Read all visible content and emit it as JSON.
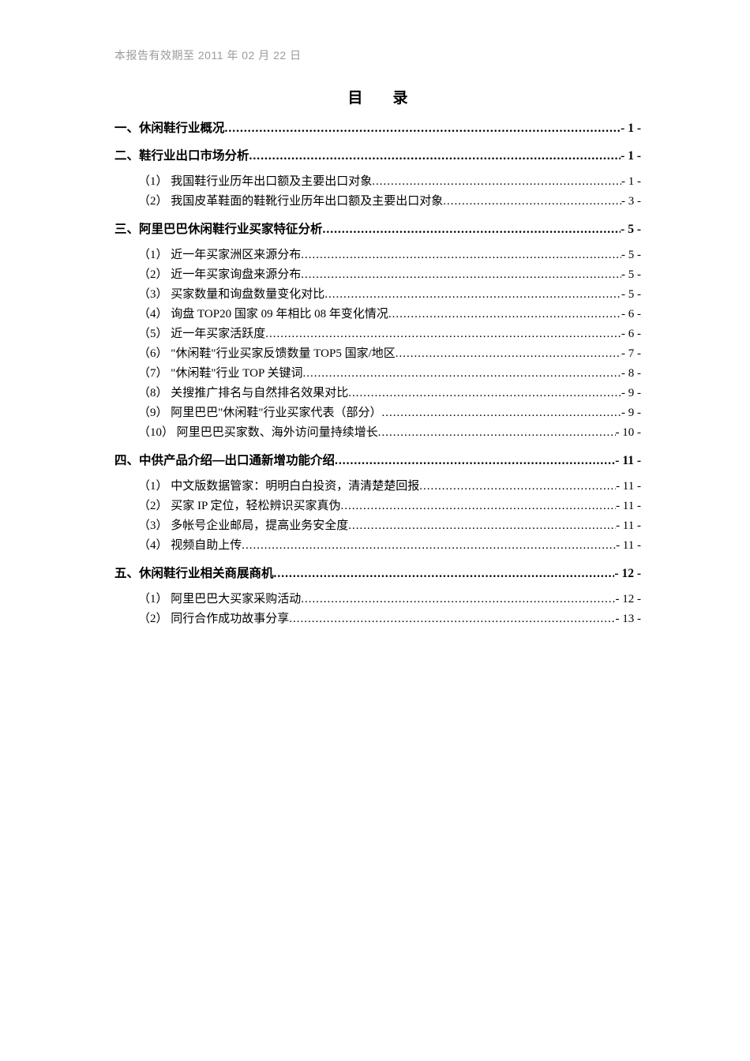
{
  "colors": {
    "background": "#ffffff",
    "body_text": "#000000",
    "header_text": "#9b9b9b"
  },
  "document": {
    "header_note": "本报告有效期至 2011 年 02 月 22 日",
    "title": "目　　录"
  },
  "toc": [
    {
      "level": 1,
      "label": "一、休闲鞋行业概况",
      "page": "- 1 -"
    },
    {
      "level": 1,
      "label": "二、鞋行业出口市场分析",
      "page": "- 1 -"
    },
    {
      "level": 2,
      "label": "（1） 我国鞋行业历年出口额及主要出口对象",
      "page": "- 1 -"
    },
    {
      "level": 2,
      "label": "（2） 我国皮革鞋面的鞋靴行业历年出口额及主要出口对象",
      "page": "- 3 -"
    },
    {
      "level": 1,
      "label": "三、阿里巴巴休闲鞋行业买家特征分析",
      "page": "- 5 -"
    },
    {
      "level": 2,
      "label": "（1） 近一年买家洲区来源分布",
      "page": "- 5 -"
    },
    {
      "level": 2,
      "label": "（2） 近一年买家询盘来源分布",
      "page": "- 5 -"
    },
    {
      "level": 2,
      "label": "（3） 买家数量和询盘数量变化对比",
      "page": "- 5 -"
    },
    {
      "level": 2,
      "label": "（4） 询盘 TOP20 国家 09 年相比 08 年变化情况",
      "page": "- 6 -"
    },
    {
      "level": 2,
      "label": "（5） 近一年买家活跃度",
      "page": "- 6 -"
    },
    {
      "level": 2,
      "label": "（6） \"休闲鞋\"行业买家反馈数量 TOP5 国家/地区",
      "page": "- 7 -"
    },
    {
      "level": 2,
      "label": "（7） \"休闲鞋\"行业 TOP 关键词",
      "page": "- 8 -"
    },
    {
      "level": 2,
      "label": "（8） 关搜推广排名与自然排名效果对比",
      "page": "- 9 -"
    },
    {
      "level": 2,
      "label": "（9） 阿里巴巴\"休闲鞋\"行业买家代表（部分） ",
      "page": "- 9 -"
    },
    {
      "level": 2,
      "label": "（10） 阿里巴巴买家数、海外访问量持续增长",
      "page": "- 10 -"
    },
    {
      "level": 1,
      "label": "四、中供产品介绍—出口通新增功能介绍",
      "page": "- 11 -"
    },
    {
      "level": 2,
      "label": "（1） 中文版数据管家：明明白白投资，清清楚楚回报",
      "page": "- 11 -"
    },
    {
      "level": 2,
      "label": "（2） 买家 IP 定位，轻松辨识买家真伪",
      "page": "- 11 -"
    },
    {
      "level": 2,
      "label": "（3） 多帐号企业邮局，提高业务安全度",
      "page": "- 11 -"
    },
    {
      "level": 2,
      "label": "（4） 视频自助上传",
      "page": "- 11 -"
    },
    {
      "level": 1,
      "label": "五、休闲鞋行业相关商展商机",
      "page": "- 12 -"
    },
    {
      "level": 2,
      "label": "（1） 阿里巴巴大买家采购活动",
      "page": "- 12 -"
    },
    {
      "level": 2,
      "label": "（2） 同行合作成功故事分享",
      "page": "- 13 -"
    }
  ]
}
